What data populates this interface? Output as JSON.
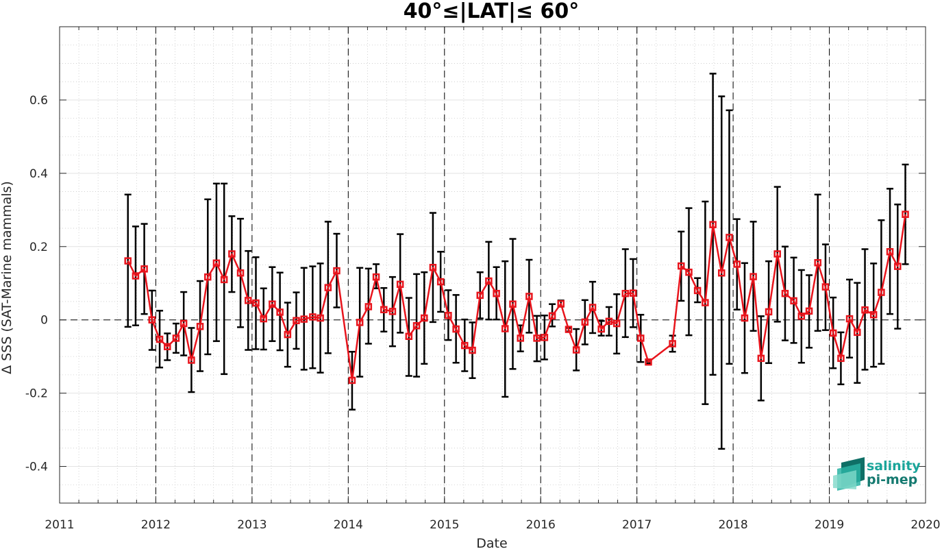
{
  "chart_data": {
    "type": "line",
    "title": "40°≤|LAT|≤ 60°",
    "xlabel": "Date",
    "ylabel": "Δ SSS (SAT-Marine mammals)",
    "xlim": [
      2011,
      2020
    ],
    "ylim": [
      -0.5,
      0.8
    ],
    "xticks": [
      "2011",
      "2012",
      "2013",
      "2014",
      "2015",
      "2016",
      "2017",
      "2018",
      "2019",
      "2020"
    ],
    "yticks": [
      "-0.4",
      "-0.2",
      "0",
      "0.2",
      "0.4",
      "0.6"
    ],
    "ytick_values": [
      -0.4,
      -0.2,
      0,
      0.2,
      0.4,
      0.6
    ],
    "grid": true,
    "year_separators": [
      2012,
      2013,
      2014,
      2015,
      2016,
      2017,
      2018,
      2019
    ],
    "zero_line": true,
    "series": [
      {
        "color": "#e8141c",
        "error_bar_color": "#000000",
        "points": [
          {
            "x": 2011.71,
            "y": 0.161,
            "lo": -0.019,
            "hi": 0.342
          },
          {
            "x": 2011.79,
            "y": 0.12,
            "lo": -0.015,
            "hi": 0.255
          },
          {
            "x": 2011.88,
            "y": 0.139,
            "lo": 0.016,
            "hi": 0.262
          },
          {
            "x": 2011.96,
            "y": 0.0,
            "lo": -0.082,
            "hi": 0.08
          },
          {
            "x": 2012.04,
            "y": -0.053,
            "lo": -0.13,
            "hi": 0.025
          },
          {
            "x": 2012.12,
            "y": -0.073,
            "lo": -0.11,
            "hi": -0.037
          },
          {
            "x": 2012.21,
            "y": -0.05,
            "lo": -0.09,
            "hi": -0.01
          },
          {
            "x": 2012.29,
            "y": -0.01,
            "lo": -0.097,
            "hi": 0.076
          },
          {
            "x": 2012.37,
            "y": -0.11,
            "lo": -0.197,
            "hi": -0.022
          },
          {
            "x": 2012.46,
            "y": -0.018,
            "lo": -0.14,
            "hi": 0.106
          },
          {
            "x": 2012.54,
            "y": 0.117,
            "lo": -0.094,
            "hi": 0.329
          },
          {
            "x": 2012.63,
            "y": 0.155,
            "lo": -0.058,
            "hi": 0.372
          },
          {
            "x": 2012.71,
            "y": 0.11,
            "lo": -0.148,
            "hi": 0.372
          },
          {
            "x": 2012.79,
            "y": 0.18,
            "lo": 0.076,
            "hi": 0.283
          },
          {
            "x": 2012.88,
            "y": 0.128,
            "lo": -0.02,
            "hi": 0.276
          },
          {
            "x": 2012.96,
            "y": 0.053,
            "lo": -0.082,
            "hi": 0.188
          },
          {
            "x": 2013.04,
            "y": 0.046,
            "lo": -0.08,
            "hi": 0.171
          },
          {
            "x": 2013.12,
            "y": 0.003,
            "lo": -0.081,
            "hi": 0.086
          },
          {
            "x": 2013.21,
            "y": 0.043,
            "lo": -0.058,
            "hi": 0.144
          },
          {
            "x": 2013.29,
            "y": 0.021,
            "lo": -0.083,
            "hi": 0.129
          },
          {
            "x": 2013.37,
            "y": -0.04,
            "lo": -0.128,
            "hi": 0.047
          },
          {
            "x": 2013.46,
            "y": -0.002,
            "lo": -0.079,
            "hi": 0.075
          },
          {
            "x": 2013.54,
            "y": 0.002,
            "lo": -0.136,
            "hi": 0.142
          },
          {
            "x": 2013.63,
            "y": 0.008,
            "lo": -0.132,
            "hi": 0.146
          },
          {
            "x": 2013.71,
            "y": 0.005,
            "lo": -0.144,
            "hi": 0.154
          },
          {
            "x": 2013.79,
            "y": 0.088,
            "lo": -0.091,
            "hi": 0.268
          },
          {
            "x": 2013.88,
            "y": 0.134,
            "lo": 0.034,
            "hi": 0.235
          },
          {
            "x": 2014.04,
            "y": -0.165,
            "lo": -0.245,
            "hi": -0.087
          },
          {
            "x": 2014.12,
            "y": -0.007,
            "lo": -0.155,
            "hi": 0.142
          },
          {
            "x": 2014.21,
            "y": 0.036,
            "lo": -0.065,
            "hi": 0.14
          },
          {
            "x": 2014.29,
            "y": 0.117,
            "lo": 0.086,
            "hi": 0.152
          },
          {
            "x": 2014.37,
            "y": 0.028,
            "lo": -0.032,
            "hi": 0.087
          },
          {
            "x": 2014.46,
            "y": 0.023,
            "lo": -0.072,
            "hi": 0.117
          },
          {
            "x": 2014.54,
            "y": 0.097,
            "lo": -0.035,
            "hi": 0.234
          },
          {
            "x": 2014.63,
            "y": -0.045,
            "lo": -0.153,
            "hi": 0.06
          },
          {
            "x": 2014.71,
            "y": -0.016,
            "lo": -0.155,
            "hi": 0.125
          },
          {
            "x": 2014.79,
            "y": 0.005,
            "lo": -0.12,
            "hi": 0.13
          },
          {
            "x": 2014.88,
            "y": 0.143,
            "lo": -0.006,
            "hi": 0.292
          },
          {
            "x": 2014.96,
            "y": 0.104,
            "lo": 0.022,
            "hi": 0.186
          },
          {
            "x": 2015.04,
            "y": 0.012,
            "lo": -0.055,
            "hi": 0.081
          },
          {
            "x": 2015.12,
            "y": -0.025,
            "lo": -0.117,
            "hi": 0.068
          },
          {
            "x": 2015.21,
            "y": -0.07,
            "lo": -0.14,
            "hi": 0.001
          },
          {
            "x": 2015.29,
            "y": -0.083,
            "lo": -0.159,
            "hi": -0.007
          },
          {
            "x": 2015.37,
            "y": 0.067,
            "lo": 0.004,
            "hi": 0.13
          },
          {
            "x": 2015.46,
            "y": 0.106,
            "lo": 0.001,
            "hi": 0.213
          },
          {
            "x": 2015.54,
            "y": 0.072,
            "lo": 0.001,
            "hi": 0.144
          },
          {
            "x": 2015.63,
            "y": -0.024,
            "lo": -0.21,
            "hi": 0.16
          },
          {
            "x": 2015.71,
            "y": 0.043,
            "lo": -0.134,
            "hi": 0.221
          },
          {
            "x": 2015.79,
            "y": -0.05,
            "lo": -0.086,
            "hi": -0.015
          },
          {
            "x": 2015.88,
            "y": 0.064,
            "lo": -0.035,
            "hi": 0.164
          },
          {
            "x": 2015.96,
            "y": -0.05,
            "lo": -0.113,
            "hi": 0.011
          },
          {
            "x": 2016.04,
            "y": -0.048,
            "lo": -0.108,
            "hi": 0.012
          },
          {
            "x": 2016.12,
            "y": 0.011,
            "lo": -0.018,
            "hi": 0.043
          },
          {
            "x": 2016.21,
            "y": 0.044,
            "lo": 0.036,
            "hi": 0.053
          },
          {
            "x": 2016.29,
            "y": -0.026,
            "lo": -0.032,
            "hi": -0.022
          },
          {
            "x": 2016.37,
            "y": -0.082,
            "lo": -0.138,
            "hi": -0.025
          },
          {
            "x": 2016.46,
            "y": -0.006,
            "lo": -0.067,
            "hi": 0.054
          },
          {
            "x": 2016.54,
            "y": 0.034,
            "lo": -0.036,
            "hi": 0.104
          },
          {
            "x": 2016.63,
            "y": -0.025,
            "lo": -0.043,
            "hi": -0.003
          },
          {
            "x": 2016.71,
            "y": -0.004,
            "lo": -0.043,
            "hi": 0.035
          },
          {
            "x": 2016.79,
            "y": -0.01,
            "lo": -0.092,
            "hi": 0.07
          },
          {
            "x": 2016.88,
            "y": 0.072,
            "lo": -0.047,
            "hi": 0.193
          },
          {
            "x": 2016.96,
            "y": 0.073,
            "lo": -0.02,
            "hi": 0.166
          },
          {
            "x": 2017.04,
            "y": -0.05,
            "lo": -0.115,
            "hi": 0.014
          },
          {
            "x": 2017.12,
            "y": -0.115,
            "lo": -0.118,
            "hi": -0.112
          },
          {
            "x": 2017.37,
            "y": -0.065,
            "lo": -0.087,
            "hi": -0.043
          },
          {
            "x": 2017.46,
            "y": 0.147,
            "lo": 0.052,
            "hi": 0.241
          },
          {
            "x": 2017.54,
            "y": 0.13,
            "lo": -0.042,
            "hi": 0.305
          },
          {
            "x": 2017.63,
            "y": 0.08,
            "lo": 0.048,
            "hi": 0.114
          },
          {
            "x": 2017.71,
            "y": 0.047,
            "lo": -0.23,
            "hi": 0.323
          },
          {
            "x": 2017.79,
            "y": 0.26,
            "lo": -0.15,
            "hi": 0.672
          },
          {
            "x": 2017.88,
            "y": 0.128,
            "lo": -0.352,
            "hi": 0.61
          },
          {
            "x": 2017.96,
            "y": 0.225,
            "lo": -0.12,
            "hi": 0.572
          },
          {
            "x": 2018.04,
            "y": 0.152,
            "lo": 0.028,
            "hi": 0.275
          },
          {
            "x": 2018.12,
            "y": 0.005,
            "lo": -0.145,
            "hi": 0.155
          },
          {
            "x": 2018.21,
            "y": 0.118,
            "lo": -0.03,
            "hi": 0.268
          },
          {
            "x": 2018.29,
            "y": -0.105,
            "lo": -0.22,
            "hi": 0.01
          },
          {
            "x": 2018.37,
            "y": 0.022,
            "lo": -0.118,
            "hi": 0.16
          },
          {
            "x": 2018.46,
            "y": 0.18,
            "lo": -0.005,
            "hi": 0.363
          },
          {
            "x": 2018.54,
            "y": 0.072,
            "lo": -0.056,
            "hi": 0.2
          },
          {
            "x": 2018.63,
            "y": 0.052,
            "lo": -0.063,
            "hi": 0.17
          },
          {
            "x": 2018.71,
            "y": 0.01,
            "lo": -0.117,
            "hi": 0.136
          },
          {
            "x": 2018.79,
            "y": 0.024,
            "lo": -0.076,
            "hi": 0.122
          },
          {
            "x": 2018.88,
            "y": 0.156,
            "lo": -0.03,
            "hi": 0.342
          },
          {
            "x": 2018.96,
            "y": 0.09,
            "lo": -0.028,
            "hi": 0.206
          },
          {
            "x": 2019.04,
            "y": -0.036,
            "lo": -0.132,
            "hi": 0.061
          },
          {
            "x": 2019.12,
            "y": -0.105,
            "lo": -0.176,
            "hi": -0.034
          },
          {
            "x": 2019.21,
            "y": 0.003,
            "lo": -0.103,
            "hi": 0.11
          },
          {
            "x": 2019.29,
            "y": -0.034,
            "lo": -0.172,
            "hi": 0.101
          },
          {
            "x": 2019.37,
            "y": 0.027,
            "lo": -0.136,
            "hi": 0.193
          },
          {
            "x": 2019.46,
            "y": 0.014,
            "lo": -0.128,
            "hi": 0.154
          },
          {
            "x": 2019.54,
            "y": 0.075,
            "lo": -0.12,
            "hi": 0.272
          },
          {
            "x": 2019.63,
            "y": 0.186,
            "lo": 0.016,
            "hi": 0.358
          },
          {
            "x": 2019.71,
            "y": 0.146,
            "lo": -0.024,
            "hi": 0.315
          },
          {
            "x": 2019.79,
            "y": 0.288,
            "lo": 0.152,
            "hi": 0.424
          }
        ]
      }
    ]
  },
  "logo": {
    "line1": "salinity",
    "line2": "pi-mep",
    "colors": [
      "#1aa59a",
      "#157a70"
    ]
  }
}
